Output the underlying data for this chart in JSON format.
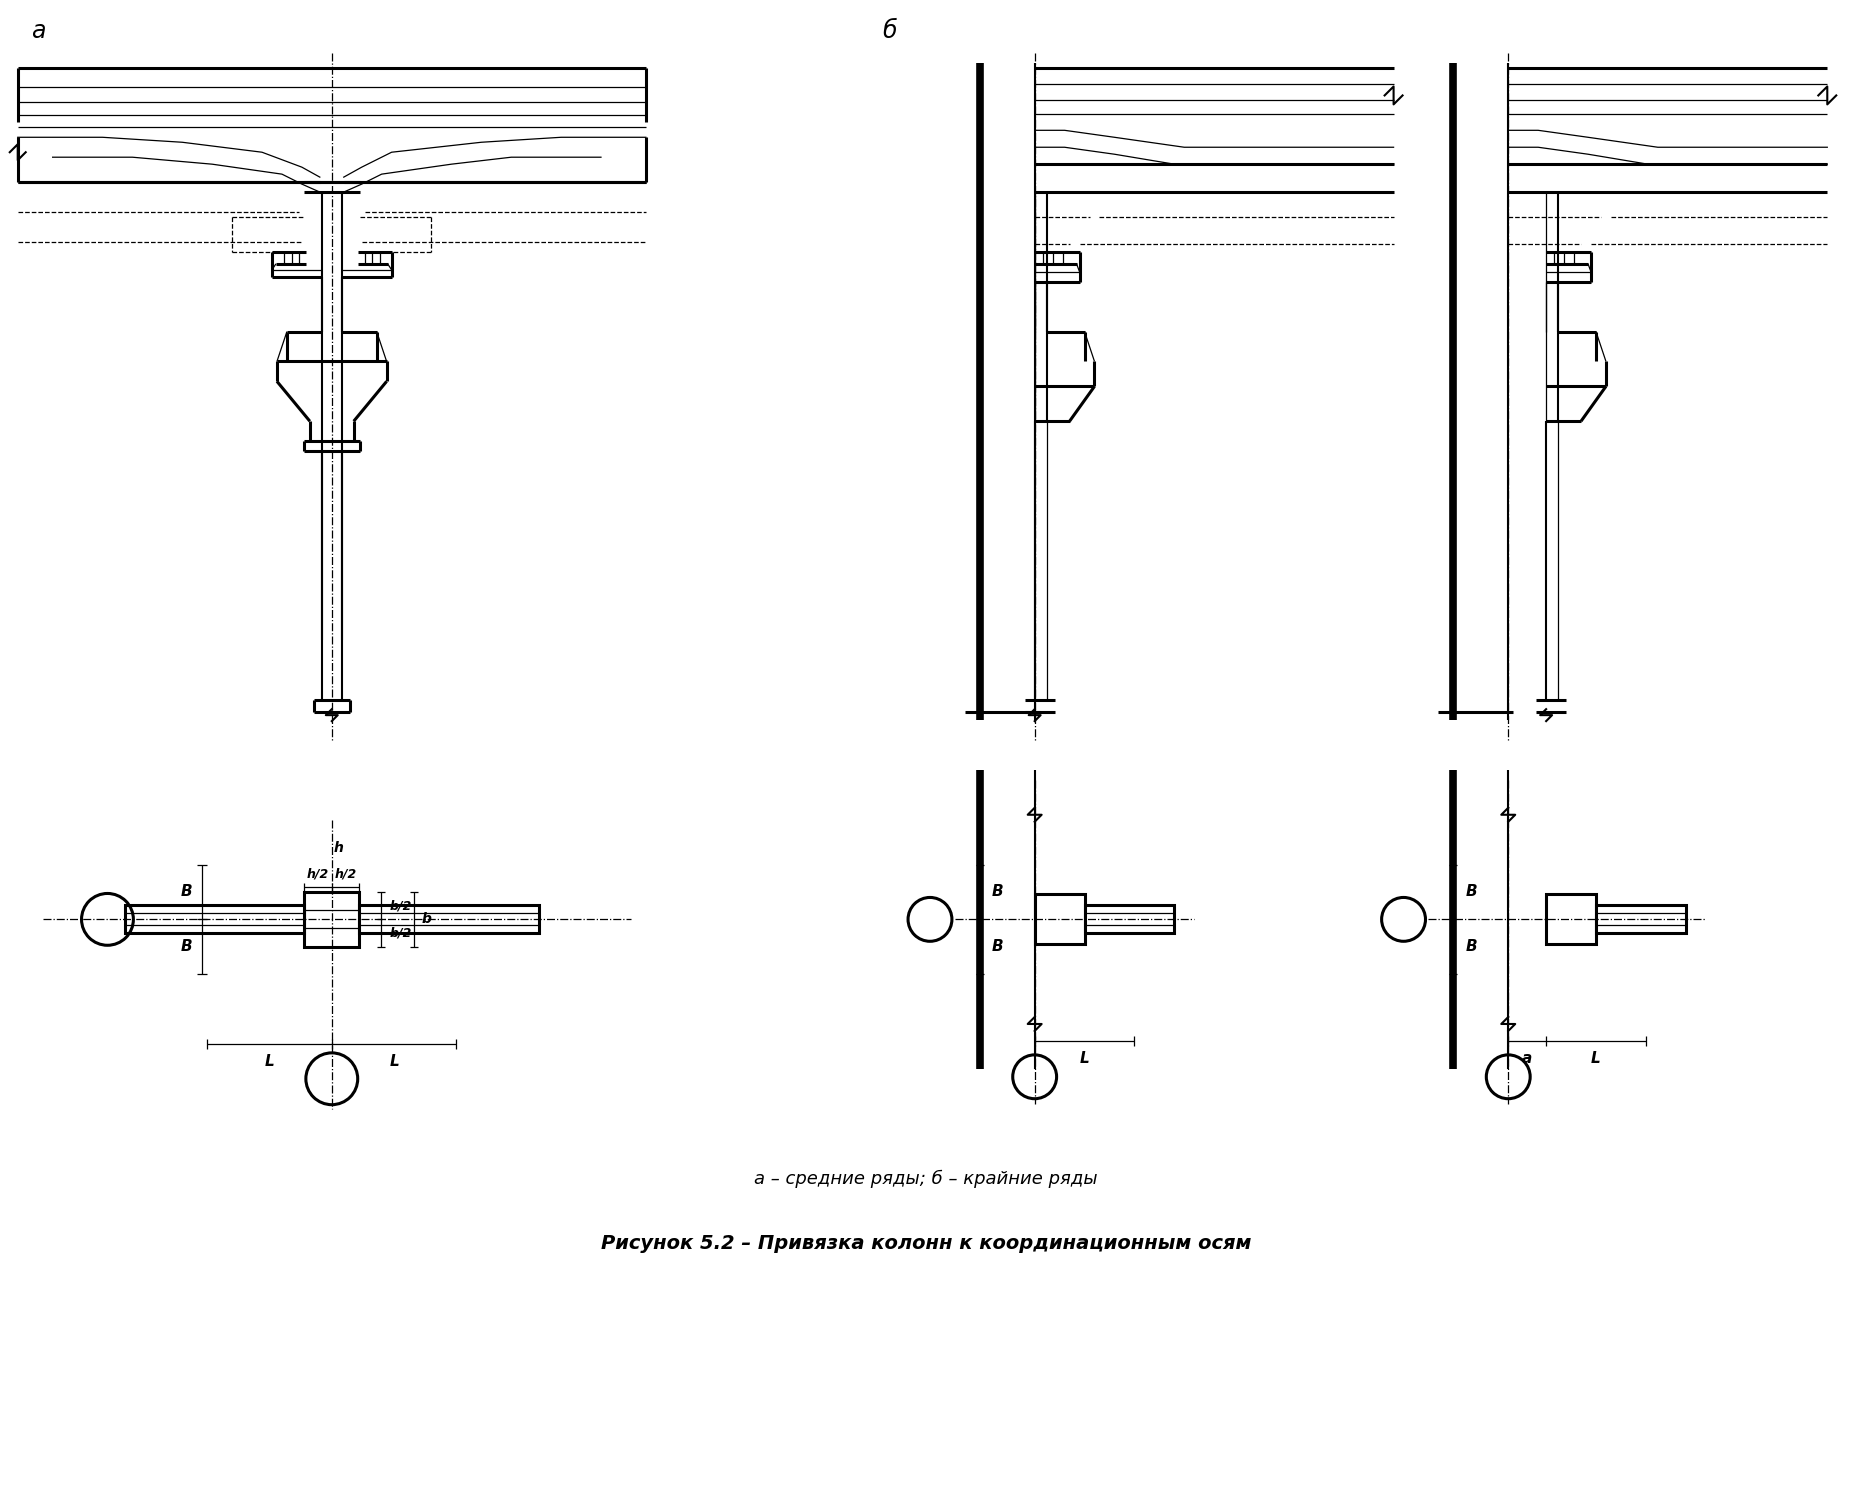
{
  "title": "Рисунок 5.2 – Привязка колонн к координационным осям",
  "caption": "а – средние ряды; б – крайние ряды",
  "label_a": "а",
  "label_b": "б",
  "bg_color": "#ffffff",
  "line_color": "#000000"
}
